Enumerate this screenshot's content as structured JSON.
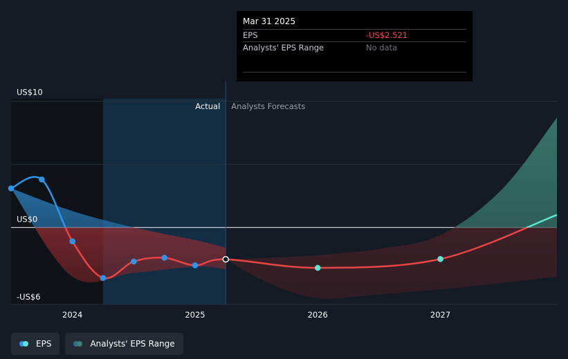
{
  "tooltip": {
    "date": "Mar 31 2025",
    "rows": [
      {
        "label": "EPS",
        "value": "-US$2.521"
      },
      {
        "label": "Analysts' EPS Range",
        "value": "No data"
      }
    ]
  },
  "regions": {
    "actual": "Actual",
    "forecast": "Analysts Forecasts"
  },
  "legend": [
    {
      "label": "EPS",
      "colors": [
        "#2e94e8",
        "#5fe3d3"
      ]
    },
    {
      "label": "Analysts' EPS Range",
      "colors": [
        "#2e6e8a",
        "#3f7f74"
      ]
    }
  ],
  "colors": {
    "actual_line": "#2e94e8",
    "negative_line": "#e84545",
    "forecast_positive": "#5fe3d3"
  },
  "chart_data": {
    "type": "line",
    "y_tick_labels": [
      "US$10",
      "US$0",
      "-US$6"
    ],
    "y_ticks": [
      10,
      0,
      -6
    ],
    "ylim": [
      -6.1,
      10.2
    ],
    "xlim": [
      2023.5,
      2027.95
    ],
    "x_tick_labels": [
      "2024",
      "2025",
      "2026",
      "2027"
    ],
    "x_ticks": [
      2024.0,
      2025.0,
      2026.0,
      2027.0
    ],
    "actual_end": 2025.25,
    "highlight_start": 2024.25,
    "series": [
      {
        "role": "eps",
        "points": [
          {
            "x": 2023.5,
            "y": 3.1
          },
          {
            "x": 2023.75,
            "y": 3.8
          },
          {
            "x": 2024.0,
            "y": -1.1
          },
          {
            "x": 2024.25,
            "y": -4.0
          },
          {
            "x": 2024.5,
            "y": -2.7
          },
          {
            "x": 2024.75,
            "y": -2.4
          },
          {
            "x": 2025.0,
            "y": -3.0
          },
          {
            "x": 2025.25,
            "y": -2.521
          },
          {
            "x": 2026.0,
            "y": -3.2
          },
          {
            "x": 2027.0,
            "y": -2.5
          },
          {
            "x": 2027.95,
            "y": 1.0
          }
        ]
      }
    ],
    "past_range": {
      "x": [
        2023.5,
        2024.0,
        2024.5,
        2025.0,
        2025.25
      ],
      "high": [
        3.1,
        1.3,
        0.0,
        -1.0,
        -1.6
      ],
      "low": [
        3.1,
        -3.9,
        -3.6,
        -3.1,
        -3.3
      ]
    },
    "forecast_range": {
      "x": [
        2025.25,
        2025.6,
        2026.0,
        2026.5,
        2027.0,
        2027.5,
        2027.95
      ],
      "high": [
        -2.521,
        -2.4,
        -2.2,
        -1.7,
        -0.6,
        3.0,
        8.7
      ],
      "low": [
        -2.521,
        -4.4,
        -5.6,
        -5.3,
        -4.9,
        -4.4,
        -3.9
      ]
    }
  }
}
